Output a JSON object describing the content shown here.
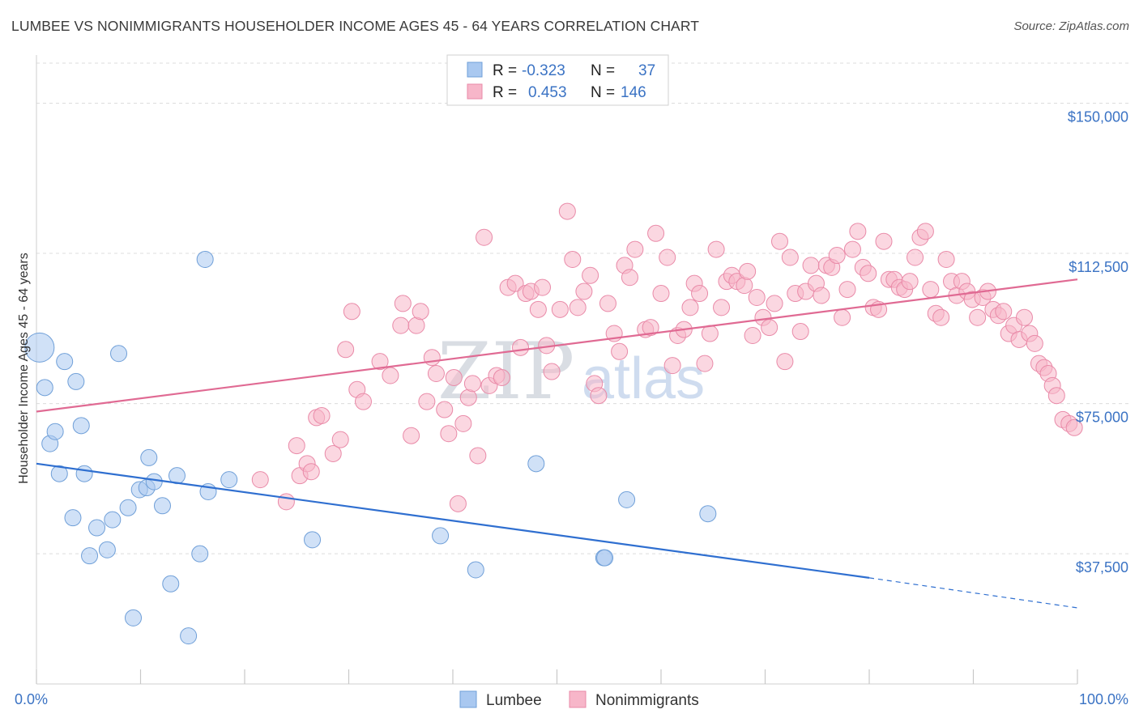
{
  "header": {
    "title": "LUMBEE VS NONIMMIGRANTS HOUSEHOLDER INCOME AGES 45 - 64 YEARS CORRELATION CHART",
    "source": "Source: ZipAtlas.com"
  },
  "legend": {
    "rows": [
      {
        "r_label": "R =",
        "r_value": "-0.323",
        "n_label": "N =",
        "n_value": "37",
        "color": "#a9c8f0"
      },
      {
        "r_label": "R =",
        "r_value": "0.453",
        "n_label": "N =",
        "n_value": "146",
        "color": "#f7b6c9"
      }
    ]
  },
  "bottom_legend": [
    {
      "label": "Lumbee",
      "color": "#a9c8f0"
    },
    {
      "label": "Nonimmigrants",
      "color": "#f7b6c9"
    }
  ],
  "watermark": {
    "zip": "ZIP",
    "atlas": "atlas"
  },
  "chart_data": {
    "type": "scatter",
    "title": "LUMBEE VS NONIMMIGRANTS HOUSEHOLDER INCOME AGES 45 - 64 YEARS CORRELATION CHART",
    "ylabel": "Householder Income Ages 45 - 64 years",
    "xlabel": "",
    "xlim": [
      0,
      100
    ],
    "ylim": [
      5000,
      160000
    ],
    "x_tick_labels": [
      "0.0%",
      "100.0%"
    ],
    "y_ticks": [
      37500,
      75000,
      112500,
      150000
    ],
    "y_tick_labels": [
      "$37,500",
      "$75,000",
      "$112,500",
      "$150,000"
    ],
    "grid": true,
    "series": [
      {
        "name": "Lumbee",
        "color": "#a9c8f0",
        "edge": "#6f9fd8",
        "line_color": "#2f6fd0",
        "trend": {
          "x0": 0,
          "y0": 60000,
          "x1": 80,
          "y1": 31500,
          "dash_to_x": 100,
          "dash_to_y": 24000
        },
        "points": [
          {
            "x": 0.3,
            "y": 89000,
            "big": true
          },
          {
            "x": 0.8,
            "y": 79000
          },
          {
            "x": 1.3,
            "y": 65000
          },
          {
            "x": 1.8,
            "y": 68000
          },
          {
            "x": 2.2,
            "y": 57500
          },
          {
            "x": 2.7,
            "y": 85500
          },
          {
            "x": 3.5,
            "y": 46500
          },
          {
            "x": 3.8,
            "y": 80500
          },
          {
            "x": 4.3,
            "y": 69500
          },
          {
            "x": 4.6,
            "y": 57500
          },
          {
            "x": 5.1,
            "y": 37000
          },
          {
            "x": 5.8,
            "y": 44000
          },
          {
            "x": 6.8,
            "y": 38500
          },
          {
            "x": 7.3,
            "y": 46000
          },
          {
            "x": 7.9,
            "y": 87500
          },
          {
            "x": 8.8,
            "y": 49000
          },
          {
            "x": 9.3,
            "y": 21500
          },
          {
            "x": 9.9,
            "y": 53500
          },
          {
            "x": 10.6,
            "y": 54000
          },
          {
            "x": 10.8,
            "y": 61500
          },
          {
            "x": 11.3,
            "y": 55500
          },
          {
            "x": 12.1,
            "y": 49500
          },
          {
            "x": 12.9,
            "y": 30000
          },
          {
            "x": 13.5,
            "y": 57000
          },
          {
            "x": 14.6,
            "y": 17000
          },
          {
            "x": 15.7,
            "y": 37500
          },
          {
            "x": 16.2,
            "y": 111000
          },
          {
            "x": 16.5,
            "y": 53000
          },
          {
            "x": 18.5,
            "y": 56000
          },
          {
            "x": 26.5,
            "y": 41000
          },
          {
            "x": 38.8,
            "y": 42000
          },
          {
            "x": 42.2,
            "y": 33500
          },
          {
            "x": 48.0,
            "y": 60000
          },
          {
            "x": 54.5,
            "y": 36500
          },
          {
            "x": 54.6,
            "y": 36500
          },
          {
            "x": 56.7,
            "y": 51000
          },
          {
            "x": 64.5,
            "y": 47500
          }
        ]
      },
      {
        "name": "Nonimmigrants",
        "color": "#f7b6c9",
        "edge": "#e98aa8",
        "line_color": "#e06a93",
        "trend": {
          "x0": 0,
          "y0": 73000,
          "x1": 100,
          "y1": 106000
        },
        "points": [
          {
            "x": 21.5,
            "y": 56000
          },
          {
            "x": 24.0,
            "y": 50500
          },
          {
            "x": 25.0,
            "y": 64500
          },
          {
            "x": 25.3,
            "y": 57000
          },
          {
            "x": 26.0,
            "y": 60000
          },
          {
            "x": 26.4,
            "y": 58000
          },
          {
            "x": 26.9,
            "y": 71500
          },
          {
            "x": 27.4,
            "y": 72000
          },
          {
            "x": 28.5,
            "y": 62500
          },
          {
            "x": 29.2,
            "y": 66000
          },
          {
            "x": 29.7,
            "y": 88500
          },
          {
            "x": 30.3,
            "y": 98000
          },
          {
            "x": 30.8,
            "y": 78500
          },
          {
            "x": 31.4,
            "y": 75500
          },
          {
            "x": 33.0,
            "y": 85500
          },
          {
            "x": 34.0,
            "y": 82000
          },
          {
            "x": 35.0,
            "y": 94500
          },
          {
            "x": 35.2,
            "y": 100000
          },
          {
            "x": 36.0,
            "y": 67000
          },
          {
            "x": 36.5,
            "y": 94500
          },
          {
            "x": 36.9,
            "y": 98000
          },
          {
            "x": 37.5,
            "y": 75500
          },
          {
            "x": 38.0,
            "y": 86500
          },
          {
            "x": 38.4,
            "y": 82500
          },
          {
            "x": 39.2,
            "y": 73500
          },
          {
            "x": 39.6,
            "y": 67500
          },
          {
            "x": 40.1,
            "y": 81500
          },
          {
            "x": 40.5,
            "y": 50000
          },
          {
            "x": 41.0,
            "y": 70000
          },
          {
            "x": 41.5,
            "y": 76500
          },
          {
            "x": 41.9,
            "y": 80000
          },
          {
            "x": 42.4,
            "y": 62000
          },
          {
            "x": 43.0,
            "y": 116500
          },
          {
            "x": 43.5,
            "y": 79500
          },
          {
            "x": 44.2,
            "y": 82000
          },
          {
            "x": 44.7,
            "y": 81500
          },
          {
            "x": 45.3,
            "y": 104000
          },
          {
            "x": 46.0,
            "y": 105000
          },
          {
            "x": 46.5,
            "y": 89000
          },
          {
            "x": 47.0,
            "y": 102500
          },
          {
            "x": 47.5,
            "y": 103000
          },
          {
            "x": 48.2,
            "y": 98500
          },
          {
            "x": 48.6,
            "y": 104000
          },
          {
            "x": 49.0,
            "y": 89500
          },
          {
            "x": 49.5,
            "y": 83000
          },
          {
            "x": 50.3,
            "y": 98500
          },
          {
            "x": 51.0,
            "y": 123000
          },
          {
            "x": 51.5,
            "y": 111000
          },
          {
            "x": 52.0,
            "y": 99000
          },
          {
            "x": 52.6,
            "y": 103000
          },
          {
            "x": 53.2,
            "y": 107000
          },
          {
            "x": 53.6,
            "y": 80000
          },
          {
            "x": 54.0,
            "y": 77000
          },
          {
            "x": 54.9,
            "y": 100000
          },
          {
            "x": 55.5,
            "y": 92500
          },
          {
            "x": 56.0,
            "y": 88000
          },
          {
            "x": 56.5,
            "y": 109500
          },
          {
            "x": 57.0,
            "y": 106500
          },
          {
            "x": 57.5,
            "y": 113500
          },
          {
            "x": 58.5,
            "y": 93500
          },
          {
            "x": 59.0,
            "y": 94000
          },
          {
            "x": 59.5,
            "y": 117500
          },
          {
            "x": 60.0,
            "y": 102500
          },
          {
            "x": 60.6,
            "y": 111500
          },
          {
            "x": 61.1,
            "y": 84500
          },
          {
            "x": 61.6,
            "y": 92000
          },
          {
            "x": 62.2,
            "y": 93500
          },
          {
            "x": 62.8,
            "y": 99000
          },
          {
            "x": 63.2,
            "y": 105000
          },
          {
            "x": 63.7,
            "y": 102500
          },
          {
            "x": 64.2,
            "y": 85000
          },
          {
            "x": 64.7,
            "y": 92500
          },
          {
            "x": 65.3,
            "y": 113500
          },
          {
            "x": 65.8,
            "y": 99000
          },
          {
            "x": 66.3,
            "y": 105500
          },
          {
            "x": 66.8,
            "y": 107000
          },
          {
            "x": 67.3,
            "y": 105500
          },
          {
            "x": 68.0,
            "y": 104500
          },
          {
            "x": 68.3,
            "y": 108000
          },
          {
            "x": 68.8,
            "y": 92000
          },
          {
            "x": 69.2,
            "y": 101500
          },
          {
            "x": 69.8,
            "y": 96500
          },
          {
            "x": 70.4,
            "y": 94000
          },
          {
            "x": 70.9,
            "y": 100000
          },
          {
            "x": 71.4,
            "y": 115500
          },
          {
            "x": 71.9,
            "y": 85500
          },
          {
            "x": 72.4,
            "y": 111500
          },
          {
            "x": 72.9,
            "y": 102500
          },
          {
            "x": 73.4,
            "y": 93000
          },
          {
            "x": 73.9,
            "y": 103000
          },
          {
            "x": 74.4,
            "y": 109500
          },
          {
            "x": 74.9,
            "y": 105000
          },
          {
            "x": 75.4,
            "y": 102000
          },
          {
            "x": 75.9,
            "y": 109500
          },
          {
            "x": 76.4,
            "y": 109000
          },
          {
            "x": 76.9,
            "y": 112000
          },
          {
            "x": 77.4,
            "y": 96500
          },
          {
            "x": 77.9,
            "y": 103500
          },
          {
            "x": 78.4,
            "y": 113500
          },
          {
            "x": 78.9,
            "y": 118000
          },
          {
            "x": 79.4,
            "y": 109000
          },
          {
            "x": 79.9,
            "y": 107500
          },
          {
            "x": 80.4,
            "y": 99000
          },
          {
            "x": 80.9,
            "y": 98500
          },
          {
            "x": 81.4,
            "y": 115500
          },
          {
            "x": 81.9,
            "y": 106000
          },
          {
            "x": 82.4,
            "y": 106000
          },
          {
            "x": 82.9,
            "y": 104000
          },
          {
            "x": 83.4,
            "y": 103500
          },
          {
            "x": 83.9,
            "y": 105500
          },
          {
            "x": 84.4,
            "y": 111500
          },
          {
            "x": 84.9,
            "y": 116500
          },
          {
            "x": 85.4,
            "y": 118000
          },
          {
            "x": 85.9,
            "y": 103500
          },
          {
            "x": 86.4,
            "y": 97500
          },
          {
            "x": 86.9,
            "y": 96500
          },
          {
            "x": 87.4,
            "y": 111000
          },
          {
            "x": 87.9,
            "y": 105500
          },
          {
            "x": 88.4,
            "y": 102000
          },
          {
            "x": 88.9,
            "y": 105500
          },
          {
            "x": 89.4,
            "y": 103000
          },
          {
            "x": 89.9,
            "y": 101000
          },
          {
            "x": 90.4,
            "y": 96500
          },
          {
            "x": 90.9,
            "y": 101500
          },
          {
            "x": 91.4,
            "y": 103000
          },
          {
            "x": 91.9,
            "y": 98500
          },
          {
            "x": 92.4,
            "y": 97000
          },
          {
            "x": 92.9,
            "y": 98000
          },
          {
            "x": 93.4,
            "y": 92500
          },
          {
            "x": 93.9,
            "y": 94500
          },
          {
            "x": 94.4,
            "y": 91000
          },
          {
            "x": 94.9,
            "y": 96500
          },
          {
            "x": 95.4,
            "y": 92500
          },
          {
            "x": 95.9,
            "y": 90000
          },
          {
            "x": 96.3,
            "y": 85000
          },
          {
            "x": 96.8,
            "y": 84000
          },
          {
            "x": 97.2,
            "y": 82500
          },
          {
            "x": 97.6,
            "y": 79500
          },
          {
            "x": 98.0,
            "y": 77000
          },
          {
            "x": 98.6,
            "y": 71000
          },
          {
            "x": 99.2,
            "y": 70000
          },
          {
            "x": 99.7,
            "y": 69000
          }
        ]
      }
    ]
  }
}
